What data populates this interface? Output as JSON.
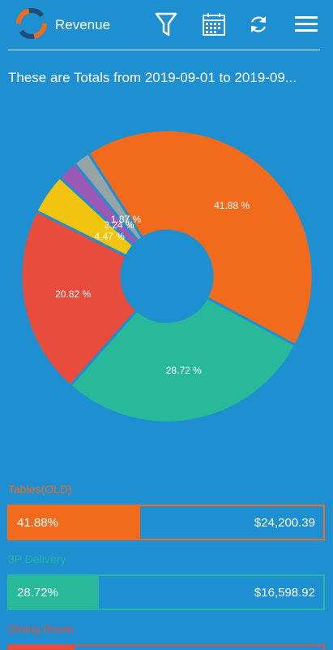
{
  "app_bar": {
    "title": "Revenue",
    "icons": [
      "filter-icon",
      "calendar-icon",
      "refresh-icon",
      "menu-icon"
    ]
  },
  "subtitle": "These are Totals from 2019-09-01 to 2019-09...",
  "colors": {
    "background": "#1e8fd0",
    "orange": "#f26b1d",
    "teal": "#27b99a",
    "red": "#e74c3c",
    "yellow": "#f1c40f",
    "purple": "#9b59b6",
    "gray": "#95a5a6"
  },
  "chart_data": {
    "type": "pie",
    "donut": true,
    "slices": [
      {
        "label": "Tables(OLD)",
        "percent": 41.88,
        "label_text": "41.88 %",
        "color": "#f26b1d"
      },
      {
        "label": "3P Delivery",
        "percent": 28.72,
        "label_text": "28.72 %",
        "color": "#27b99a"
      },
      {
        "label": "Dining Room",
        "percent": 20.82,
        "label_text": "20.82 %",
        "color": "#e74c3c"
      },
      {
        "label": "",
        "percent": 4.47,
        "label_text": "4.47 %",
        "color": "#f1c40f"
      },
      {
        "label": "",
        "percent": 2.24,
        "label_text": "2.24 %",
        "color": "#9b59b6"
      },
      {
        "label": "",
        "percent": 1.87,
        "label_text": "1.87 %",
        "color": "#95a5a6"
      }
    ]
  },
  "categories": [
    {
      "name": "Tables(OLD)",
      "percent_label": "41.88%",
      "amount": "$24,200.39",
      "fraction": 0.4188,
      "color": "#f26b1d"
    },
    {
      "name": "3P Delivery",
      "percent_label": "28.72%",
      "amount": "$16,598.92",
      "fraction": 0.2872,
      "color": "#27b99a"
    },
    {
      "name": "Dining Room",
      "percent_label": "",
      "amount": "",
      "fraction": 0.2082,
      "color": "#e74c3c"
    }
  ]
}
